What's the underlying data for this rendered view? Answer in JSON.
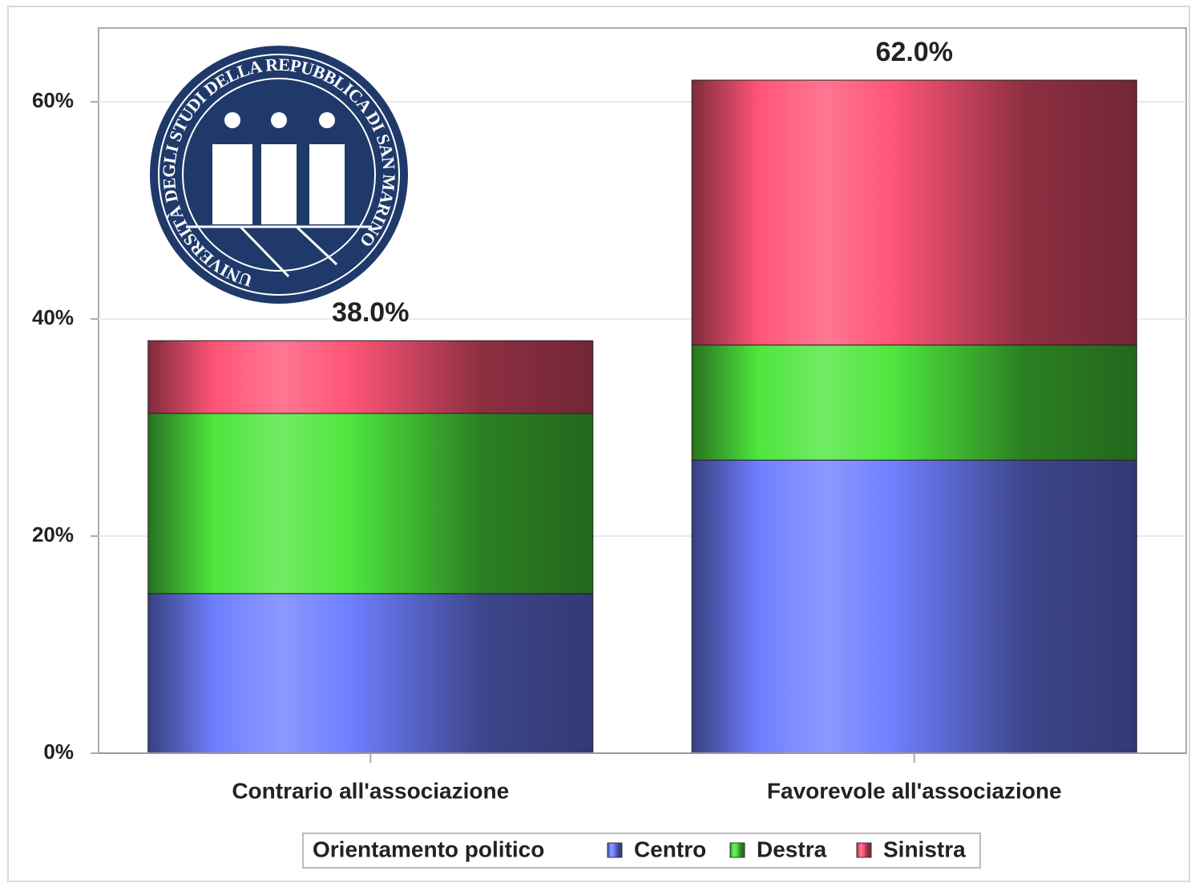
{
  "chart_data": {
    "type": "stacked_bar",
    "categories": [
      "Contrario all'associazione",
      "Favorevole all'associazione"
    ],
    "series": [
      {
        "name": "Centro",
        "color": "#6f7fff",
        "values": [
          14.7,
          27.0
        ]
      },
      {
        "name": "Destra",
        "color": "#4ee63e",
        "values": [
          16.6,
          10.6
        ]
      },
      {
        "name": "Sinistra",
        "color": "#ff5577",
        "values": [
          6.7,
          24.4
        ]
      }
    ],
    "totals": [
      38.0,
      62.0
    ],
    "total_labels": [
      "38.0%",
      "62.0%"
    ],
    "ylim": [
      0,
      66.8
    ],
    "yticks": [
      {
        "value": 0,
        "label": "0%"
      },
      {
        "value": 20,
        "label": "20%"
      },
      {
        "value": 40,
        "label": "40%"
      },
      {
        "value": 60,
        "label": "60%"
      }
    ],
    "grid": true,
    "legend_title": "Orientamento politico",
    "legend_position": "bottom",
    "logo_text": "UNIVERSITÀ DEGLI STUDI DELLA REPUBBLICA DI SAN MARINO"
  }
}
